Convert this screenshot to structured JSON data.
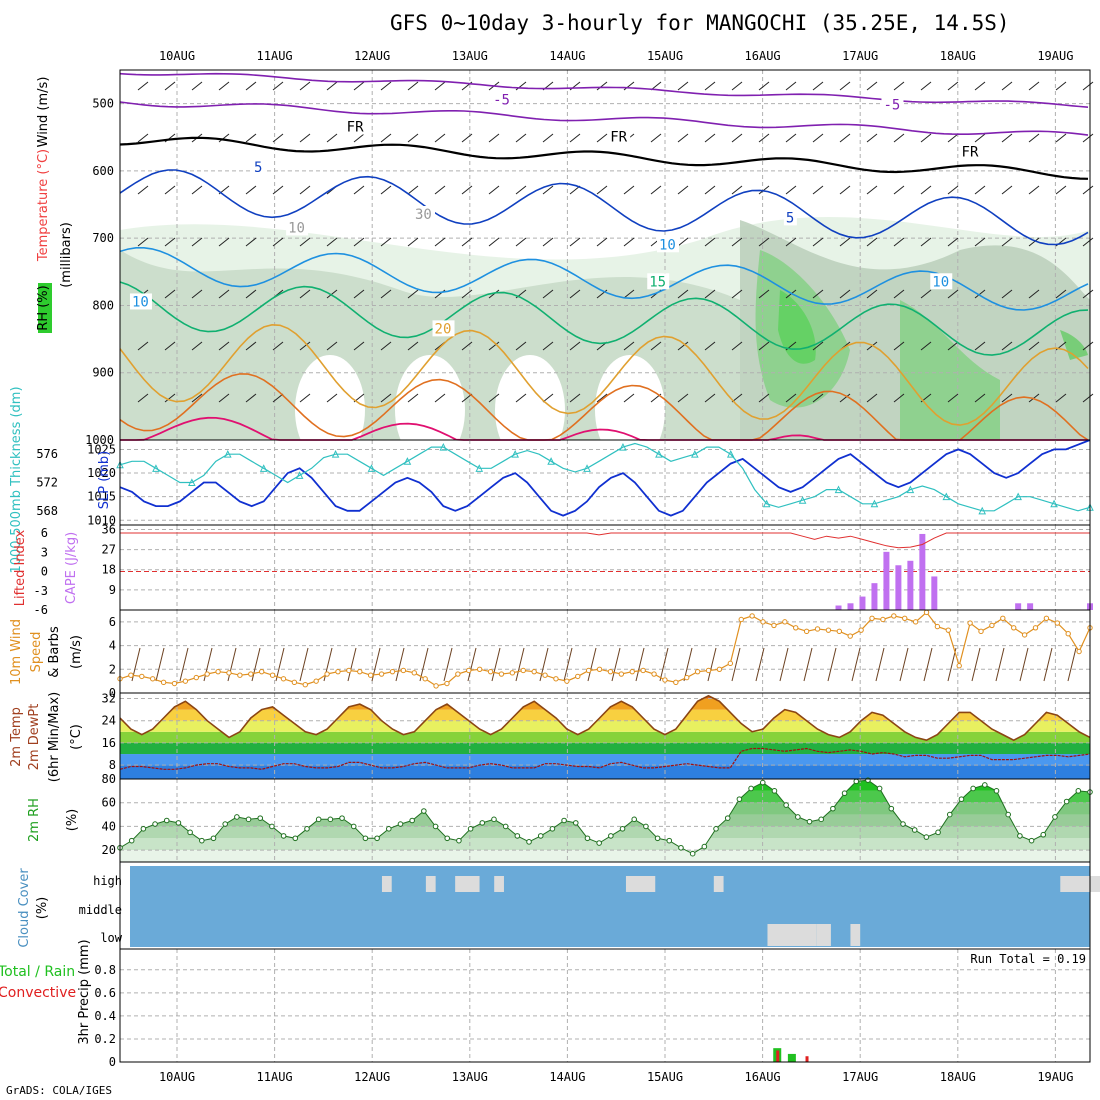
{
  "title": "GFS 0~10day 3-hourly for MANGOCHI (35.25E, 14.5S)",
  "credit": "GrADS: COLA/IGES",
  "dates": [
    "10AUG",
    "11AUG",
    "12AUG",
    "13AUG",
    "14AUG",
    "15AUG",
    "16AUG",
    "17AUG",
    "18AUG",
    "19AUG"
  ],
  "colors": {
    "rh": "#2ecc2e",
    "cape": "#c070f0",
    "li": "#e03030",
    "thick": "#30c0c0",
    "slp": "#1030d0",
    "wind": "#e09020",
    "temp": "#8b4513",
    "dew": "#a01010",
    "rain_total": "#20c020",
    "rain_conv": "#e02020",
    "cloud_bg": "#6aaad8"
  },
  "chart_data": [
    {
      "type": "contour",
      "panel": "upper-air",
      "ylabel_parts": [
        "Wind (m/s)",
        "Temperature (°C)",
        "RH (%)",
        "(millibars)"
      ],
      "pressure_ticks": [
        500,
        600,
        700,
        800,
        900,
        1000
      ],
      "pressure_range": [
        1000,
        450
      ],
      "contour_labels": [
        {
          "text": "-5",
          "color": "#8020b0",
          "day": 3.3,
          "p": 500
        },
        {
          "text": "-5",
          "color": "#8020b0",
          "day": 7.3,
          "p": 507
        },
        {
          "text": "FR",
          "color": "#000000",
          "day": 1.8,
          "p": 540
        },
        {
          "text": "FR",
          "color": "#000000",
          "day": 4.5,
          "p": 555
        },
        {
          "text": "FR",
          "color": "#000000",
          "day": 8.1,
          "p": 577
        },
        {
          "text": "5",
          "color": "#1040c0",
          "day": 0.85,
          "p": 600
        },
        {
          "text": "5",
          "color": "#1040c0",
          "day": 6.3,
          "p": 675
        },
        {
          "text": "10",
          "color": "#1e90e0",
          "day": -0.4,
          "p": 800
        },
        {
          "text": "10",
          "color": "#1e90e0",
          "day": 5.0,
          "p": 715
        },
        {
          "text": "10",
          "color": "#1e90e0",
          "day": 7.8,
          "p": 770
        },
        {
          "text": "15",
          "color": "#10b070",
          "day": 4.9,
          "p": 770
        },
        {
          "text": "20",
          "color": "#e0a030",
          "day": 2.7,
          "p": 840
        },
        {
          "text": "30",
          "color": "#999999",
          "day": 2.5,
          "p": 670
        },
        {
          "text": "10",
          "color": "#999999",
          "day": 1.2,
          "p": 690
        }
      ],
      "isotherm_levels": [
        -5,
        0,
        5,
        10,
        15,
        20,
        25
      ]
    },
    {
      "type": "line",
      "panel": "thickness-slp",
      "ylabel_left": "1000-500mb Thickness (dm)",
      "ylabel_right": "SLP (mb)",
      "left_ticks": [
        568,
        572,
        576
      ],
      "right_ticks": [
        1010,
        1015,
        1020,
        1025
      ],
      "left_range": [
        566,
        578
      ],
      "right_range": [
        1009,
        1027
      ],
      "series": [
        {
          "name": "SLP",
          "values": [
            1017,
            1016,
            1014,
            1013,
            1013,
            1014,
            1016,
            1018,
            1018,
            1016,
            1014,
            1013,
            1014,
            1017,
            1020,
            1021,
            1019,
            1016,
            1013,
            1012,
            1012,
            1014,
            1016,
            1018,
            1019,
            1018,
            1016,
            1013,
            1012,
            1013,
            1015,
            1017,
            1019,
            1020,
            1018,
            1015,
            1012,
            1011,
            1012,
            1014,
            1017,
            1019,
            1020,
            1018,
            1015,
            1012,
            1011,
            1012,
            1015,
            1018,
            1020,
            1022,
            1023,
            1021,
            1019,
            1017,
            1016,
            1017,
            1019,
            1021,
            1023,
            1024,
            1022,
            1020,
            1018,
            1017,
            1018,
            1020,
            1022,
            1024,
            1025,
            1024,
            1022,
            1020,
            1019,
            1020,
            1022,
            1024,
            1025,
            1025,
            1026,
            1027
          ]
        },
        {
          "name": "Thickness",
          "values": [
            574.5,
            575,
            575,
            574,
            573,
            572,
            572,
            573,
            575,
            576,
            576,
            575,
            574,
            573,
            572,
            573,
            574,
            575.5,
            576,
            576,
            575,
            574,
            573,
            574,
            575,
            576,
            577,
            577,
            576,
            575,
            574,
            574,
            575,
            576,
            576.5,
            576,
            575,
            574,
            573.5,
            574,
            575,
            576,
            577,
            577.5,
            577,
            576,
            575,
            575.5,
            576,
            577,
            577,
            576,
            574,
            571,
            569,
            568.5,
            569,
            569.5,
            570,
            571,
            571,
            570,
            569,
            569,
            569.5,
            570,
            571,
            571.5,
            571,
            570,
            569,
            568.5,
            568,
            568,
            569,
            570,
            570,
            569.5,
            569,
            568.5,
            568,
            568.5
          ]
        }
      ]
    },
    {
      "type": "bar+line",
      "panel": "cape-li",
      "ylabel_left": "Lifted Index",
      "ylabel_right": "CAPE (J/kg)",
      "li_ticks": [
        -6,
        -3,
        0,
        3,
        6
      ],
      "cape_ticks": [
        9,
        18,
        27,
        36
      ],
      "cape_range": [
        0,
        38
      ],
      "cape": [
        0,
        0,
        0,
        0,
        0,
        0,
        0,
        0,
        0,
        0,
        0,
        0,
        0,
        0,
        0,
        0,
        0,
        0,
        0,
        0,
        0,
        0,
        0,
        0,
        0,
        0,
        0,
        0,
        0,
        0,
        0,
        0,
        0,
        0,
        0,
        0,
        0,
        0,
        0,
        0,
        0,
        0,
        0,
        0,
        0,
        0,
        0,
        0,
        0,
        0,
        0,
        0,
        0,
        0,
        0,
        0,
        0,
        0,
        0,
        0,
        2,
        3,
        6,
        12,
        26,
        20,
        22,
        34,
        15,
        0,
        0,
        0,
        0,
        0,
        0,
        3,
        3,
        0,
        0,
        0,
        0,
        3
      ],
      "li_visible": [
        6,
        6,
        6,
        6,
        6,
        6,
        6,
        6,
        6,
        6,
        6,
        6,
        6,
        6,
        6,
        6,
        6,
        6,
        6,
        6,
        6,
        6,
        6,
        6,
        6,
        6,
        6,
        6,
        6,
        6,
        6,
        6,
        6,
        6,
        6,
        6,
        6,
        6,
        6,
        6,
        5.7,
        6,
        6,
        6,
        6,
        6,
        6,
        6,
        6,
        6,
        6,
        6,
        6,
        6,
        6,
        6,
        6,
        5.5,
        5,
        5.5,
        5.2,
        5.5,
        5,
        4.5,
        4.0,
        3.7,
        3.8,
        4.2,
        5.2,
        6,
        6,
        6,
        6,
        6,
        6,
        6,
        6,
        6,
        6,
        6,
        6,
        6
      ]
    },
    {
      "type": "line",
      "panel": "wind10m",
      "ylabel": "10m Wind Speed (m/s) & Barbs",
      "ticks": [
        0,
        2,
        4,
        6
      ],
      "range": [
        0,
        7
      ],
      "values": [
        1.2,
        1.5,
        1.4,
        1.2,
        0.9,
        0.8,
        1.0,
        1.3,
        1.6,
        1.8,
        1.7,
        1.5,
        1.6,
        1.8,
        1.5,
        1.2,
        0.9,
        0.7,
        1.0,
        1.6,
        1.8,
        1.9,
        1.8,
        1.5,
        1.6,
        1.8,
        1.9,
        1.7,
        1.2,
        0.6,
        0.8,
        1.6,
        1.9,
        2.0,
        1.8,
        1.6,
        1.7,
        1.9,
        1.8,
        1.5,
        1.2,
        1.0,
        1.4,
        1.9,
        2.0,
        1.8,
        1.6,
        1.8,
        1.9,
        1.6,
        1.1,
        0.9,
        1.3,
        1.8,
        1.9,
        2.0,
        2.5,
        6.2,
        6.5,
        6.0,
        5.7,
        6.0,
        5.5,
        5.2,
        5.4,
        5.3,
        5.2,
        4.8,
        5.3,
        6.3,
        6.2,
        6.5,
        6.3,
        6.0,
        6.8,
        5.6,
        5.3,
        2.3,
        5.9,
        5.2,
        5.7,
        6.3,
        5.5,
        4.9,
        5.5,
        6.3,
        5.9,
        5.0,
        3.5,
        5.5
      ]
    },
    {
      "type": "area",
      "panel": "temp2m",
      "ylabel": "2m Temp 2m DewPt (6hr Min/Max) (°C)",
      "ticks": [
        8,
        16,
        24,
        32
      ],
      "range": [
        3,
        34
      ],
      "temp": [
        25,
        21,
        19,
        21,
        25,
        29,
        31,
        28,
        24,
        21,
        18,
        20,
        25,
        28,
        29,
        26,
        23,
        20,
        19,
        21,
        25,
        29,
        30,
        28,
        24,
        21,
        19,
        20,
        24,
        28,
        30,
        27,
        24,
        21,
        19,
        21,
        25,
        29,
        31,
        28,
        25,
        21,
        19,
        21,
        25,
        29,
        31,
        29,
        25,
        21,
        19,
        21,
        26,
        31,
        33,
        31,
        27,
        23,
        20,
        21,
        25,
        28,
        27,
        24,
        21,
        19,
        18,
        20,
        24,
        27,
        26,
        23,
        20,
        18,
        17,
        19,
        23,
        27,
        27,
        24,
        21,
        19,
        17,
        19,
        23,
        27,
        26,
        23,
        20,
        18
      ],
      "dew": [
        6.5,
        7.5,
        7.5,
        7,
        6.5,
        6.5,
        7,
        8,
        8.5,
        8.5,
        7.5,
        7,
        7,
        6.5,
        7.5,
        8.5,
        8.5,
        7.5,
        7,
        7,
        7.5,
        9,
        9,
        8,
        7,
        7,
        7.5,
        8.5,
        9,
        8,
        7,
        7,
        7,
        8,
        8.5,
        8,
        7,
        7,
        7,
        8.5,
        8.5,
        8,
        7.5,
        7.5,
        7,
        8.5,
        9,
        8,
        7,
        7,
        7.5,
        8,
        8.5,
        8,
        7.5,
        7,
        7,
        13,
        14,
        14,
        13.5,
        13,
        13.5,
        14,
        13,
        12.5,
        13,
        13.5,
        13,
        12,
        12.5,
        12,
        11,
        11.5,
        11.5,
        10.5,
        10.5,
        11,
        11.5,
        11.5,
        10,
        10,
        10,
        10.5,
        11,
        11.5,
        11.5,
        11,
        11.5,
        12
      ]
    },
    {
      "type": "area",
      "panel": "rh2m",
      "ylabel": "2m RH (%)",
      "ticks": [
        20,
        40,
        60,
        80
      ],
      "range": [
        10,
        80
      ],
      "values": [
        22,
        28,
        38,
        42,
        45,
        43,
        35,
        28,
        30,
        42,
        48,
        46,
        47,
        40,
        32,
        30,
        38,
        46,
        46,
        47,
        40,
        30,
        30,
        38,
        42,
        45,
        53,
        40,
        30,
        28,
        38,
        43,
        46,
        40,
        32,
        27,
        32,
        38,
        45,
        43,
        30,
        26,
        32,
        38,
        46,
        40,
        30,
        28,
        22,
        17,
        23,
        38,
        47,
        63,
        72,
        77,
        70,
        58,
        48,
        44,
        46,
        55,
        68,
        78,
        79,
        72,
        55,
        42,
        37,
        31,
        35,
        50,
        63,
        72,
        75,
        70,
        50,
        32,
        28,
        33,
        48,
        61,
        70,
        69
      ]
    },
    {
      "type": "heatmap",
      "panel": "cloud",
      "ylabel": "Cloud Cover (%)",
      "levels": [
        "high",
        "middle",
        "low"
      ],
      "events": [
        {
          "level": "high",
          "start": 2.1,
          "end": 2.2
        },
        {
          "level": "high",
          "start": 2.55,
          "end": 2.65
        },
        {
          "level": "high",
          "start": 2.85,
          "end": 3.1
        },
        {
          "level": "high",
          "start": 3.25,
          "end": 3.35
        },
        {
          "level": "high",
          "start": 4.6,
          "end": 4.9
        },
        {
          "level": "high",
          "start": 5.5,
          "end": 5.6
        },
        {
          "level": "high",
          "start": 9.05,
          "end": 9.9
        },
        {
          "level": "low",
          "start": 6.05,
          "end": 6.55
        },
        {
          "level": "low",
          "start": 6.55,
          "end": 6.7
        },
        {
          "level": "low",
          "start": 6.9,
          "end": 7.0
        }
      ]
    },
    {
      "type": "bar",
      "panel": "precip",
      "ylabel_parts": [
        "Total / Rain",
        "Convective",
        "3hr Precip (mm)"
      ],
      "ticks": [
        0,
        0.2,
        0.4,
        0.6,
        0.8
      ],
      "range": [
        0,
        0.98
      ],
      "run_total_label": "Run Total = 0.19",
      "bars": [
        {
          "day": 6.15,
          "total": 0.12,
          "conv": 0.1
        },
        {
          "day": 6.3,
          "total": 0.07,
          "conv": 0.0
        },
        {
          "day": 6.45,
          "total": 0.0,
          "conv": 0.05
        }
      ]
    }
  ]
}
